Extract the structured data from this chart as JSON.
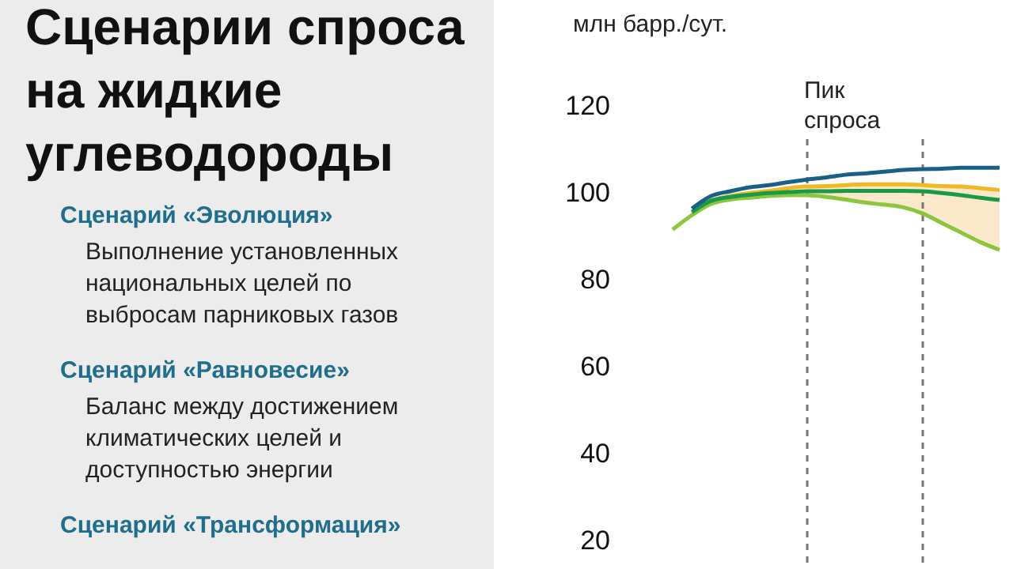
{
  "chart_data": [
    {
      "type": "other",
      "title": "Сценарии спроса на жидкие углеводороды",
      "annotations": [
        "Сценарий «Эволюция»",
        "Выполнение установленных национальных целей по выбросам парниковых газов",
        "Сценарий «Равновесие»",
        "Баланс между достижением климатических целей и доступностью энергии",
        "Сценарий «Трансформация»"
      ]
    },
    {
      "type": "line",
      "subtitle": "млн барр./сут.",
      "categories": [
        null,
        null,
        null,
        null,
        null,
        null,
        null,
        null,
        null,
        null,
        null,
        null,
        null,
        null,
        null,
        null,
        null,
        null
      ],
      "series": [
        {
          "color": "#f2b824",
          "values": [
            null,
            95.6,
            98.2,
            99.3,
            100,
            100.5,
            101.1,
            101.5,
            101.6,
            101.8,
            102,
            102,
            102,
            101.8,
            101.6,
            101.5,
            101.1,
            100.7
          ],
          "lower": [
            null,
            null,
            null,
            null,
            null,
            null,
            null,
            99.5,
            99.1,
            98.5,
            97.8,
            97.3,
            96.7,
            95.3,
            93.1,
            90.9,
            88.7,
            86.9
          ],
          "upper": [
            null,
            null,
            null,
            null,
            null,
            null,
            null,
            101.5,
            101.6,
            101.8,
            102,
            102,
            102,
            101.8,
            101.6,
            101.5,
            101.1,
            100.7
          ]
        },
        {
          "color": "#8cc63f",
          "values": [
            91.6,
            94.9,
            97.5,
            98.5,
            98.9,
            99.3,
            99.5,
            99.5,
            99.1,
            98.5,
            97.8,
            97.3,
            96.7,
            95.3,
            93.1,
            90.9,
            88.7,
            86.9
          ]
        },
        {
          "color": "#1a9a48",
          "values": [
            null,
            95.6,
            98.2,
            99.1,
            99.6,
            100,
            100.2,
            100.4,
            100.4,
            100.5,
            100.5,
            100.5,
            100.5,
            100.4,
            100,
            99.5,
            98.9,
            98.4
          ]
        },
        {
          "color": "#1c5f86",
          "values": [
            null,
            96.4,
            99.3,
            100.4,
            101.3,
            101.8,
            102.5,
            103.1,
            103.6,
            104.2,
            104.5,
            104.9,
            105.3,
            105.5,
            105.6,
            105.8,
            105.8,
            105.8
          ]
        }
      ],
      "ylim": [
        13.5,
        144.4
      ],
      "yticks": [
        20,
        40,
        60,
        80,
        100,
        120
      ],
      "tick_labels": "y",
      "annotations": [
        "Пик спроса"
      ]
    }
  ]
}
